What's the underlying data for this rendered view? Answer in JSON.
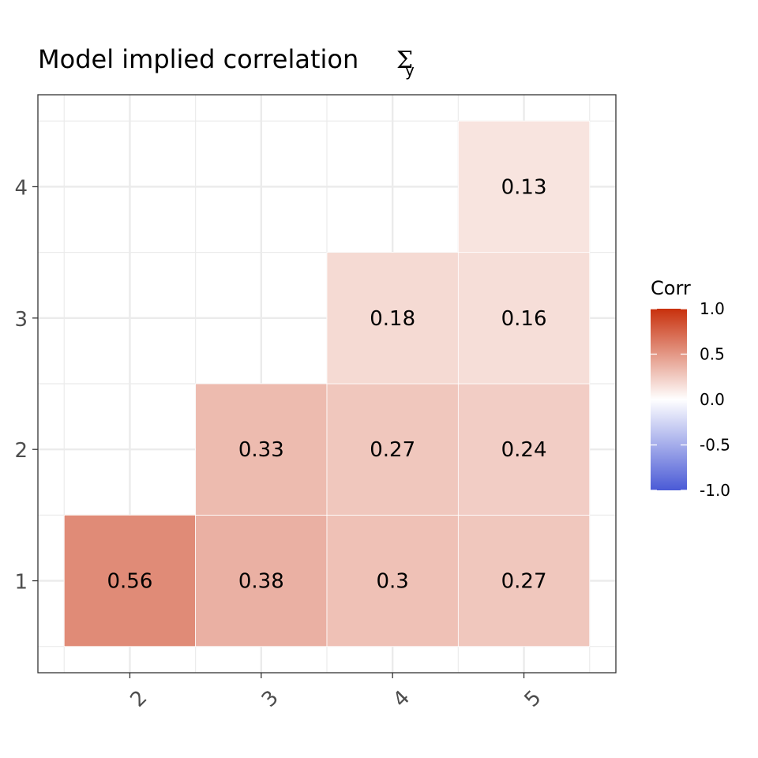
{
  "chart_data": {
    "type": "heatmap",
    "title": "Model implied correlation",
    "title_symbol": "Σ",
    "title_subscript": "y",
    "x_categories": [
      "2",
      "3",
      "4",
      "5"
    ],
    "y_categories": [
      "1",
      "2",
      "3",
      "4"
    ],
    "cells": [
      {
        "x": "2",
        "y": "1",
        "value": 0.56,
        "label": "0.56"
      },
      {
        "x": "3",
        "y": "1",
        "value": 0.38,
        "label": "0.38"
      },
      {
        "x": "4",
        "y": "1",
        "value": 0.3,
        "label": "0.3"
      },
      {
        "x": "5",
        "y": "1",
        "value": 0.27,
        "label": "0.27"
      },
      {
        "x": "3",
        "y": "2",
        "value": 0.33,
        "label": "0.33"
      },
      {
        "x": "4",
        "y": "2",
        "value": 0.27,
        "label": "0.27"
      },
      {
        "x": "5",
        "y": "2",
        "value": 0.24,
        "label": "0.24"
      },
      {
        "x": "4",
        "y": "3",
        "value": 0.18,
        "label": "0.18"
      },
      {
        "x": "5",
        "y": "3",
        "value": 0.16,
        "label": "0.16"
      },
      {
        "x": "5",
        "y": "4",
        "value": 0.13,
        "label": "0.13"
      }
    ],
    "legend": {
      "title": "Corr",
      "placement": "right",
      "breaks": [
        "1.0",
        "0.5",
        "0.0",
        "-0.5",
        "-1.0"
      ],
      "range": [
        -1,
        1
      ],
      "low_color": "#4a5ad6",
      "mid_color": "#ffffff",
      "high_color": "#c8300c"
    },
    "grid": true,
    "x_tick_rotation_deg": -45
  }
}
